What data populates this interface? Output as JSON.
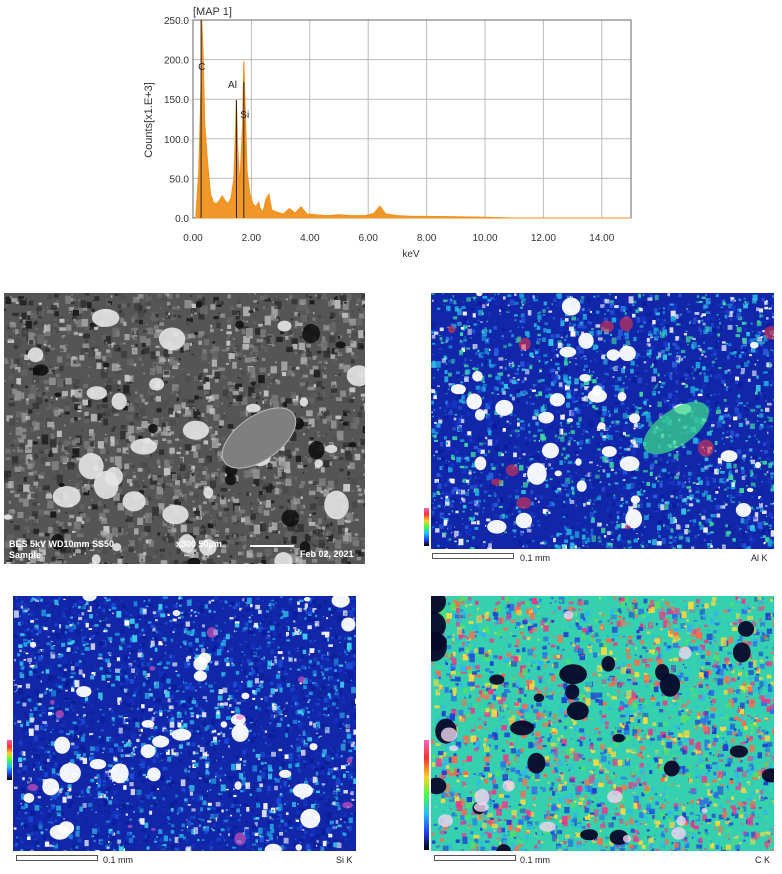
{
  "spectrum": {
    "header": "[MAP 1]",
    "ylabel": "Counts[x1.E+3]",
    "xlabel": "keV",
    "peak_labels": [
      "C",
      "Al",
      "Si"
    ]
  },
  "chart_data": {
    "type": "line",
    "title": "[MAP 1]",
    "xlabel": "keV",
    "ylabel": "Counts[x1.E+3]",
    "xlim": [
      0,
      15
    ],
    "ylim": [
      0,
      250
    ],
    "x_ticks": [
      "0.00",
      "2.00",
      "4.00",
      "6.00",
      "8.00",
      "10.00",
      "12.00",
      "14.00"
    ],
    "y_ticks": [
      "0.0",
      "50.0",
      "100.0",
      "150.0",
      "200.0",
      "250.0"
    ],
    "grid": true,
    "color": "#f0901c",
    "series": [
      {
        "x": [
          0.1,
          0.2,
          0.28,
          0.3,
          0.35,
          0.4,
          0.5,
          0.6,
          0.7,
          0.8,
          0.9,
          1.0,
          1.1,
          1.2,
          1.3,
          1.4,
          1.45,
          1.487,
          1.53,
          1.6,
          1.7,
          1.74,
          1.78,
          1.85,
          1.95,
          2.05,
          2.15,
          2.25,
          2.3,
          2.4,
          2.5,
          2.6,
          2.7,
          2.9,
          3.1,
          3.3,
          3.5,
          3.7,
          3.9,
          4.2,
          4.6,
          5.0,
          5.4,
          5.9,
          6.2,
          6.4,
          6.6,
          7.0,
          7.5,
          8.0,
          9.0,
          10.0,
          10.5,
          11.0,
          12.0,
          13.0,
          14.0,
          15.0
        ],
        "y": [
          3,
          60,
          175,
          250,
          205,
          120,
          70,
          30,
          20,
          18,
          22,
          28,
          22,
          18,
          25,
          50,
          100,
          150,
          90,
          40,
          120,
          198,
          150,
          60,
          30,
          18,
          14,
          20,
          12,
          8,
          24,
          30,
          10,
          7,
          5,
          12,
          6,
          14,
          5,
          4,
          3,
          4,
          3,
          3,
          6,
          15,
          5,
          3,
          2,
          2,
          1.5,
          1,
          0.5,
          0,
          0,
          0,
          0,
          0
        ]
      }
    ],
    "annotations": [
      "C",
      "Al",
      "Si"
    ]
  },
  "bse_panel": {
    "info_line1": "BES  5kV  WD10mm SS50",
    "info_line1_right": "x300    50µm",
    "info_line2": "Sample",
    "date": "Feb 02, 2021"
  },
  "maps": [
    {
      "id": "al",
      "element": "Al K",
      "scale": "0.1 mm"
    },
    {
      "id": "si",
      "element": "Si K",
      "scale": "0.1 mm"
    },
    {
      "id": "c",
      "element": "C K",
      "scale": "0.1 mm"
    }
  ],
  "colors": {
    "spectrum": "#f0901c",
    "map_low": "#0b1a9e",
    "map_mid": "#34c6e8",
    "map_high": "#ffffff"
  }
}
